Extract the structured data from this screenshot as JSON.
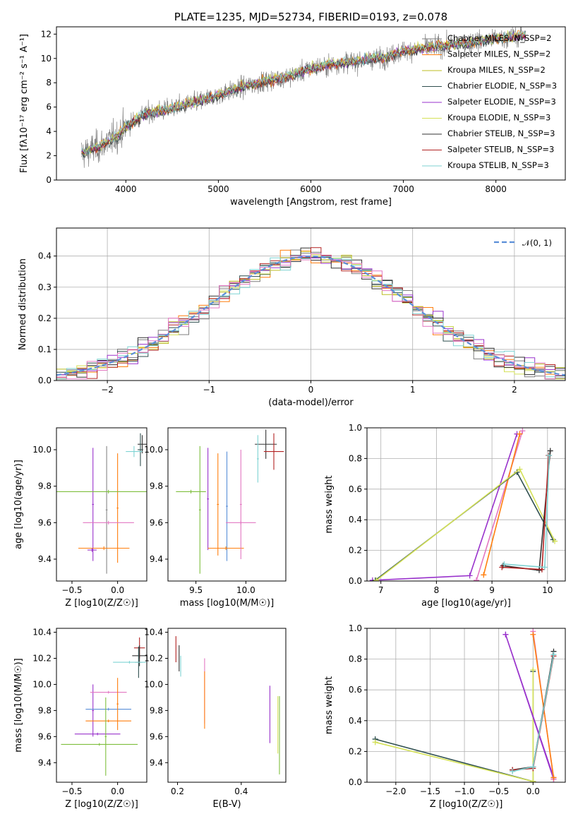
{
  "chart_data": [
    {
      "id": "spectrum",
      "type": "line",
      "title": "PLATE=1235, MJD=52734, FIBERID=0193, z=0.078",
      "xlabel": "wavelength [Angstrom, rest frame]",
      "ylabel": "Flux [fλ10⁻¹⁷ erg cm⁻² s⁻¹ A⁻¹]",
      "xlim": [
        3250,
        8750
      ],
      "ylim": [
        0,
        12.6
      ],
      "xticks": [
        4000,
        5000,
        6000,
        7000,
        8000
      ],
      "yticks": [
        0,
        2,
        4,
        6,
        8,
        10,
        12
      ],
      "grid": false,
      "legend_position": "upper right",
      "data_color": "#808080",
      "continuum": {
        "x": [
          3520,
          3700,
          3900,
          4000,
          4200,
          4500,
          4800,
          5000,
          5200,
          5500,
          5800,
          6000,
          6300,
          6600,
          6800,
          7000,
          7300,
          7600,
          8000,
          8300
        ],
        "y": [
          2.2,
          2.7,
          3.6,
          4.4,
          5.4,
          5.9,
          6.5,
          7.0,
          7.5,
          8.1,
          8.6,
          9.2,
          9.6,
          9.9,
          10.1,
          10.6,
          10.9,
          11.2,
          11.6,
          11.9
        ]
      },
      "legend": [
        {
          "label": "Chabrier MILES, N_SSP=2",
          "color": "#7f7f7f"
        },
        {
          "label": "Salpeter MILES, N_SSP=2",
          "color": "#ff7f0e"
        },
        {
          "label": "Kroupa MILES, N_SSP=2",
          "color": "#bcbd22"
        },
        {
          "label": "Chabrier ELODIE, N_SSP=3",
          "color": "#2f4f4f"
        },
        {
          "label": "Salpeter ELODIE, N_SSP=3",
          "color": "#9932cc"
        },
        {
          "label": "Kroupa ELODIE, N_SSP=3",
          "color": "#d4e157"
        },
        {
          "label": "Chabrier STELIB, N_SSP=3",
          "color": "#333333"
        },
        {
          "label": "Salpeter STELIB, N_SSP=3",
          "color": "#b22222"
        },
        {
          "label": "Kroupa STELIB, N_SSP=3",
          "color": "#7fd3d3"
        }
      ]
    },
    {
      "id": "residuals",
      "type": "line",
      "xlabel": "(data-model)/error",
      "ylabel": "Normed distribution",
      "xlim": [
        -2.5,
        2.5
      ],
      "ylim": [
        0,
        0.49
      ],
      "xticks": [
        -2,
        -1,
        0,
        1,
        2
      ],
      "yticks": [
        0.0,
        0.1,
        0.2,
        0.3,
        0.4
      ],
      "grid": true,
      "legend_position": "upper right",
      "legend_label": "𝒩(0, 1)",
      "gauss_color": "#5b8fd8"
    },
    {
      "id": "age-vs-z",
      "type": "scatter",
      "xlabel": "Z [log10(Z/Z☉)]",
      "ylabel": "age  [log10(age/yr)]",
      "xlim": [
        -0.67,
        0.32
      ],
      "ylim": [
        9.28,
        10.12
      ],
      "xticks": [
        -0.5,
        0.0
      ],
      "yticks": [
        9.4,
        9.6,
        9.8,
        10.0
      ],
      "grid": false,
      "points": [
        {
          "x": 0.27,
          "y": 10.03,
          "xerr": 0.05,
          "yerr": 0.05,
          "color": "#333333"
        },
        {
          "x": 0.25,
          "y": 10.0,
          "xerr": 0.03,
          "yerr": 0.09,
          "color": "#2f4f4f"
        },
        {
          "x": 0.18,
          "y": 9.99,
          "xerr": 0.09,
          "yerr": 0.03,
          "color": "#7fd3d3"
        },
        {
          "x": -0.27,
          "y": 9.7,
          "xerr": 0.01,
          "yerr": 0.31,
          "color": "#9932cc"
        },
        {
          "x": -0.12,
          "y": 9.67,
          "xerr": 0.01,
          "yerr": 0.35,
          "color": "#888888"
        },
        {
          "x": 0.0,
          "y": 9.68,
          "xerr": 0.01,
          "yerr": 0.3,
          "color": "#ff7f0e"
        },
        {
          "x": -0.1,
          "y": 9.77,
          "xerr": 0.57,
          "yerr": 0.01,
          "color": "#7fbf3f"
        },
        {
          "x": -0.1,
          "y": 9.6,
          "xerr": 0.28,
          "yerr": 0.01,
          "color": "#e377c2"
        },
        {
          "x": -0.15,
          "y": 9.46,
          "xerr": 0.28,
          "yerr": 0.01,
          "color": "#ff7f0e"
        },
        {
          "x": -0.28,
          "y": 9.45,
          "xerr": 0.05,
          "yerr": 0.01,
          "color": "#9932cc"
        }
      ]
    },
    {
      "id": "age-vs-mass",
      "type": "scatter",
      "xlabel": "mass [log10(M/M☉)]",
      "ylabel": "",
      "xlim": [
        9.22,
        10.4
      ],
      "ylim": [
        9.28,
        10.12
      ],
      "xticks": [
        9.5,
        10.0
      ],
      "yticks": [
        9.4,
        9.6,
        9.8,
        10.0
      ],
      "grid": false,
      "points": [
        {
          "x": 10.2,
          "y": 10.03,
          "xerr": 0.11,
          "yerr": 0.08,
          "color": "#333333"
        },
        {
          "x": 10.28,
          "y": 9.99,
          "xerr": 0.1,
          "yerr": 0.1,
          "color": "#b22222"
        },
        {
          "x": 10.12,
          "y": 9.95,
          "xerr": 0.01,
          "yerr": 0.13,
          "color": "#7fd3d3"
        },
        {
          "x": 9.54,
          "y": 9.67,
          "xerr": 0.01,
          "yerr": 0.35,
          "color": "#7fbf3f"
        },
        {
          "x": 9.62,
          "y": 9.73,
          "xerr": 0.01,
          "yerr": 0.28,
          "color": "#9932cc"
        },
        {
          "x": 9.72,
          "y": 9.7,
          "xerr": 0.01,
          "yerr": 0.28,
          "color": "#ff7f0e"
        },
        {
          "x": 9.81,
          "y": 9.69,
          "xerr": 0.01,
          "yerr": 0.3,
          "color": "#5b8fd8"
        },
        {
          "x": 9.45,
          "y": 9.77,
          "xerr": 0.15,
          "yerr": 0.01,
          "color": "#7fbf3f"
        },
        {
          "x": 9.95,
          "y": 9.6,
          "xerr": 0.15,
          "yerr": 0.01,
          "color": "#e377c2"
        },
        {
          "x": 9.8,
          "y": 9.46,
          "xerr": 0.18,
          "yerr": 0.01,
          "color": "#ff7f0e"
        },
        {
          "x": 9.95,
          "y": 9.7,
          "xerr": 0.01,
          "yerr": 0.3,
          "color": "#e377c2"
        }
      ]
    },
    {
      "id": "massweight-vs-age",
      "type": "line",
      "xlabel": "age  [log10(age/yr)]",
      "ylabel": "mass weight",
      "xlim": [
        6.75,
        10.32
      ],
      "ylim": [
        0.0,
        1.0
      ],
      "xticks": [
        7,
        8,
        9,
        10
      ],
      "yticks": [
        0.0,
        0.2,
        0.4,
        0.6,
        0.8,
        1.0
      ],
      "grid": true,
      "series": [
        {
          "color": "#9932cc",
          "x": [
            6.85,
            8.6,
            9.45
          ],
          "y": [
            0.005,
            0.035,
            0.96
          ]
        },
        {
          "color": "#e377c2",
          "x": [
            8.72,
            9.55
          ],
          "y": [
            0.005,
            0.98
          ]
        },
        {
          "color": "#ff7f0e",
          "x": [
            8.85,
            9.5
          ],
          "y": [
            0.04,
            0.96
          ]
        },
        {
          "color": "#2f4f4f",
          "x": [
            6.9,
            9.45,
            10.1
          ],
          "y": [
            0.005,
            0.71,
            0.27
          ]
        },
        {
          "color": "#d4e157",
          "x": [
            6.92,
            9.5,
            10.13
          ],
          "y": [
            0.005,
            0.73,
            0.26
          ]
        },
        {
          "color": "#333333",
          "x": [
            9.2,
            9.85,
            10.05
          ],
          "y": [
            0.1,
            0.07,
            0.85
          ]
        },
        {
          "color": "#b22222",
          "x": [
            9.18,
            9.9,
            10.02
          ],
          "y": [
            0.09,
            0.075,
            0.82
          ]
        },
        {
          "color": "#7fd3d3",
          "x": [
            9.22,
            9.95,
            10.03
          ],
          "y": [
            0.11,
            0.09,
            0.82
          ]
        }
      ]
    },
    {
      "id": "mass-vs-z",
      "type": "scatter",
      "xlabel": "Z [log10(Z/Z☉)]",
      "ylabel": "mass [log10(M/M☉)]",
      "xlim": [
        -0.67,
        0.32
      ],
      "ylim": [
        9.25,
        10.43
      ],
      "xticks": [
        -0.5,
        0.0
      ],
      "yticks": [
        9.4,
        9.6,
        9.8,
        10.0,
        10.2,
        10.4
      ],
      "grid": false,
      "points": [
        {
          "x": 0.24,
          "y": 10.28,
          "xerr": 0.06,
          "yerr": 0.08,
          "color": "#b22222"
        },
        {
          "x": 0.24,
          "y": 10.22,
          "xerr": 0.08,
          "yerr": 0.08,
          "color": "#333333"
        },
        {
          "x": 0.23,
          "y": 10.17,
          "xerr": 0.04,
          "yerr": 0.12,
          "color": "#2f4f4f"
        },
        {
          "x": 0.13,
          "y": 10.17,
          "xerr": 0.18,
          "yerr": 0.01,
          "color": "#7fd3d3"
        },
        {
          "x": -0.27,
          "y": 9.8,
          "xerr": 0.01,
          "yerr": 0.2,
          "color": "#9932cc"
        },
        {
          "x": -0.1,
          "y": 9.94,
          "xerr": 0.2,
          "yerr": 0.01,
          "color": "#e377c2"
        },
        {
          "x": -0.1,
          "y": 9.81,
          "xerr": 0.25,
          "yerr": 0.01,
          "color": "#5b8fd8"
        },
        {
          "x": -0.1,
          "y": 9.72,
          "xerr": 0.25,
          "yerr": 0.01,
          "color": "#ff7f0e"
        },
        {
          "x": -0.22,
          "y": 9.62,
          "xerr": 0.25,
          "yerr": 0.01,
          "color": "#9932cc"
        },
        {
          "x": -0.2,
          "y": 9.54,
          "xerr": 0.42,
          "yerr": 0.01,
          "color": "#7fbf3f"
        },
        {
          "x": -0.13,
          "y": 9.6,
          "xerr": 0.01,
          "yerr": 0.3,
          "color": "#7fbf3f"
        },
        {
          "x": 0.0,
          "y": 9.85,
          "xerr": 0.01,
          "yerr": 0.2,
          "color": "#ff7f0e"
        }
      ]
    },
    {
      "id": "mass-vs-ebv",
      "type": "scatter",
      "xlabel": "E(B-V)",
      "ylabel": "",
      "xlim": [
        0.17,
        0.54
      ],
      "ylim": [
        9.25,
        10.43
      ],
      "xticks": [
        0.2,
        0.4
      ],
      "yticks": [
        9.4,
        9.6,
        9.8,
        10.0,
        10.2,
        10.4
      ],
      "grid": false,
      "points": [
        {
          "x": 0.195,
          "y": 10.27,
          "xerr": 0.0,
          "yerr": 0.1,
          "color": "#b22222"
        },
        {
          "x": 0.205,
          "y": 10.2,
          "xerr": 0.0,
          "yerr": 0.1,
          "color": "#333333"
        },
        {
          "x": 0.21,
          "y": 10.14,
          "xerr": 0.0,
          "yerr": 0.08,
          "color": "#7fd3d3"
        },
        {
          "x": 0.285,
          "y": 9.95,
          "xerr": 0.0,
          "yerr": 0.25,
          "color": "#e377c2"
        },
        {
          "x": 0.285,
          "y": 9.88,
          "xerr": 0.0,
          "yerr": 0.22,
          "color": "#ff7f0e"
        },
        {
          "x": 0.49,
          "y": 9.77,
          "xerr": 0.0,
          "yerr": 0.22,
          "color": "#9932cc"
        },
        {
          "x": 0.52,
          "y": 9.61,
          "xerr": 0.0,
          "yerr": 0.3,
          "color": "#7fbf3f"
        },
        {
          "x": 0.515,
          "y": 9.69,
          "xerr": 0.0,
          "yerr": 0.22,
          "color": "#d4e157"
        }
      ]
    },
    {
      "id": "massweight-vs-z",
      "type": "line",
      "xlabel": "Z [log10(Z/Z☉)]",
      "ylabel": "mass weight",
      "xlim": [
        -2.42,
        0.47
      ],
      "ylim": [
        0.0,
        1.0
      ],
      "xticks": [
        -2.0,
        -1.5,
        -1.0,
        -0.5,
        0.0
      ],
      "yticks": [
        0.0,
        0.2,
        0.4,
        0.6,
        0.8,
        1.0
      ],
      "grid": true,
      "series": [
        {
          "color": "#2f4f4f",
          "x": [
            -2.3,
            0.0,
            0.0
          ],
          "y": [
            0.28,
            0.005,
            0.72
          ]
        },
        {
          "color": "#d4e157",
          "x": [
            -2.3,
            0.0,
            0.0
          ],
          "y": [
            0.26,
            0.005,
            0.73
          ]
        },
        {
          "color": "#9932cc",
          "x": [
            -0.4,
            0.3,
            0.3,
            -0.4
          ],
          "y": [
            0.96,
            0.02,
            0.03,
            0.96
          ]
        },
        {
          "color": "#e377c2",
          "x": [
            0.0,
            0.3
          ],
          "y": [
            0.98,
            0.02
          ]
        },
        {
          "color": "#ff7f0e",
          "x": [
            0.0,
            0.3
          ],
          "y": [
            0.96,
            0.03
          ]
        },
        {
          "color": "#333333",
          "x": [
            -0.3,
            0.0,
            0.3
          ],
          "y": [
            0.08,
            0.1,
            0.85
          ]
        },
        {
          "color": "#b22222",
          "x": [
            -0.3,
            0.0,
            0.3
          ],
          "y": [
            0.08,
            0.09,
            0.82
          ]
        },
        {
          "color": "#7fd3d3",
          "x": [
            -0.3,
            0.0,
            0.3
          ],
          "y": [
            0.07,
            0.1,
            0.83
          ]
        }
      ]
    }
  ]
}
